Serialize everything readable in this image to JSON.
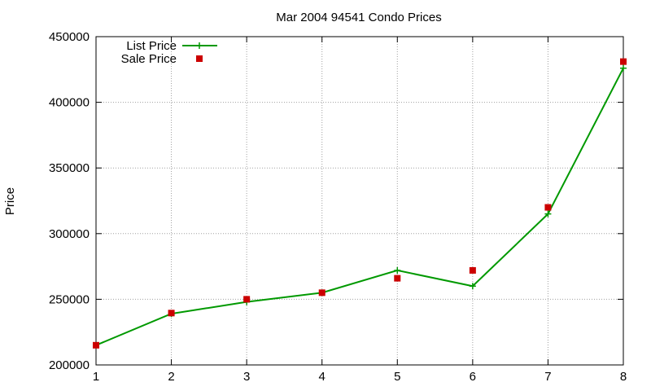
{
  "chart_data": {
    "type": "line",
    "title": "Mar 2004 94541 Condo Prices",
    "xlabel": "",
    "ylabel": "Price",
    "x": [
      1,
      2,
      3,
      4,
      5,
      6,
      7,
      8
    ],
    "xlim": [
      1,
      8
    ],
    "ylim": [
      200000,
      450000
    ],
    "xticks": [
      "1",
      "2",
      "3",
      "4",
      "5",
      "6",
      "7",
      "8"
    ],
    "yticks": [
      "200000",
      "250000",
      "300000",
      "350000",
      "400000",
      "450000"
    ],
    "grid": true,
    "legend_position": "top-left",
    "series": [
      {
        "name": "List Price",
        "style": "line+cross",
        "color": "#009900",
        "values": [
          215000,
          239000,
          248000,
          255000,
          272000,
          260000,
          315000,
          426000
        ]
      },
      {
        "name": "Sale Price",
        "style": "square",
        "color": "#cc0000",
        "values": [
          215000,
          239500,
          250000,
          255000,
          266000,
          272000,
          320000,
          431000
        ]
      }
    ]
  }
}
